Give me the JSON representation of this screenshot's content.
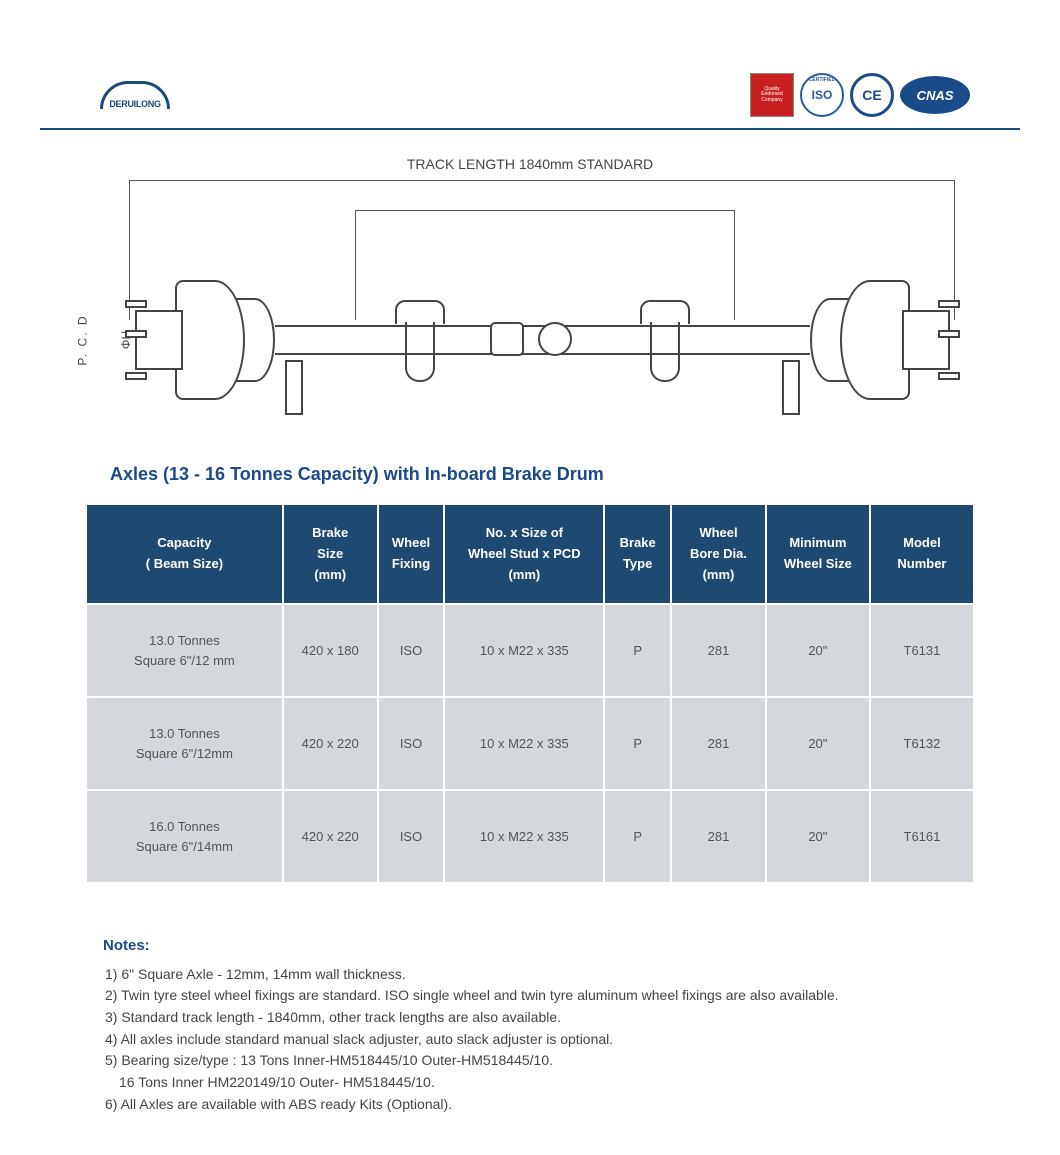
{
  "brand": {
    "name": "DERUILONG"
  },
  "badges": {
    "qec": "Quality Endorsed Company",
    "iso": "ISO",
    "ce": "CE",
    "cnas": "CNAS"
  },
  "diagram": {
    "track_label": "TRACK LENGTH 1840mm STANDARD",
    "pcd_label": "P. C. D",
    "phi_h_label": "ΦH"
  },
  "title": "Axles (13 - 16 Tonnes Capacity) with In-board Brake Drum",
  "table": {
    "columns": [
      {
        "l1": "Capacity",
        "l2": "( Beam Size)",
        "l3": ""
      },
      {
        "l1": "Brake",
        "l2": "Size",
        "l3": "(mm)"
      },
      {
        "l1": "Wheel",
        "l2": "Fixing",
        "l3": ""
      },
      {
        "l1": "No. x Size of",
        "l2": "Wheel Stud x PCD",
        "l3": "(mm)"
      },
      {
        "l1": "Brake",
        "l2": "Type",
        "l3": ""
      },
      {
        "l1": "Wheel",
        "l2": "Bore Dia.",
        "l3": "(mm)"
      },
      {
        "l1": "Minimum",
        "l2": "Wheel Size",
        "l3": ""
      },
      {
        "l1": "Model",
        "l2": "Number",
        "l3": ""
      }
    ],
    "rows": [
      {
        "capacity_l1": "13.0 Tonnes",
        "capacity_l2": "Square 6\"/12 mm",
        "brake": "420 x 180",
        "fixing": "ISO",
        "stud": "10 x M22 x 335",
        "type": "P",
        "bore": "281",
        "min": "20\"",
        "model": "T6131"
      },
      {
        "capacity_l1": "13.0 Tonnes",
        "capacity_l2": "Square 6\"/12mm",
        "brake": "420 x 220",
        "fixing": "ISO",
        "stud": "10 x M22 x 335",
        "type": "P",
        "bore": "281",
        "min": "20\"",
        "model": "T6132"
      },
      {
        "capacity_l1": "16.0 Tonnes",
        "capacity_l2": "Square 6\"/14mm",
        "brake": "420 x 220",
        "fixing": "ISO",
        "stud": "10 x M22 x 335",
        "type": "P",
        "bore": "281",
        "min": "20\"",
        "model": "T6161"
      }
    ]
  },
  "notes": {
    "title": "Notes:",
    "items": [
      "1) 6\" Square Axle - 12mm, 14mm wall thickness.",
      "2) Twin tyre steel wheel fixings are standard. ISO single wheel and twin tyre aluminum wheel fixings are also available.",
      "3) Standard track length - 1840mm, other track lengths are also available.",
      "4) All axles include standard manual slack adjuster, auto slack adjuster is optional.",
      "5) Bearing size/type : 13 Tons Inner-HM518445/10 Outer-HM518445/10.",
      "    16 Tons Inner HM220149/10 Outer- HM518445/10.",
      "6) All Axles are available with ABS ready Kits (Optional)."
    ]
  },
  "style": {
    "header_bg": "#1e4a72",
    "header_text": "#ffffff",
    "cell_bg": "#d4d7dc",
    "cell_text": "#555555",
    "accent": "#1a4a8a",
    "rule": "#1a4a7a"
  }
}
